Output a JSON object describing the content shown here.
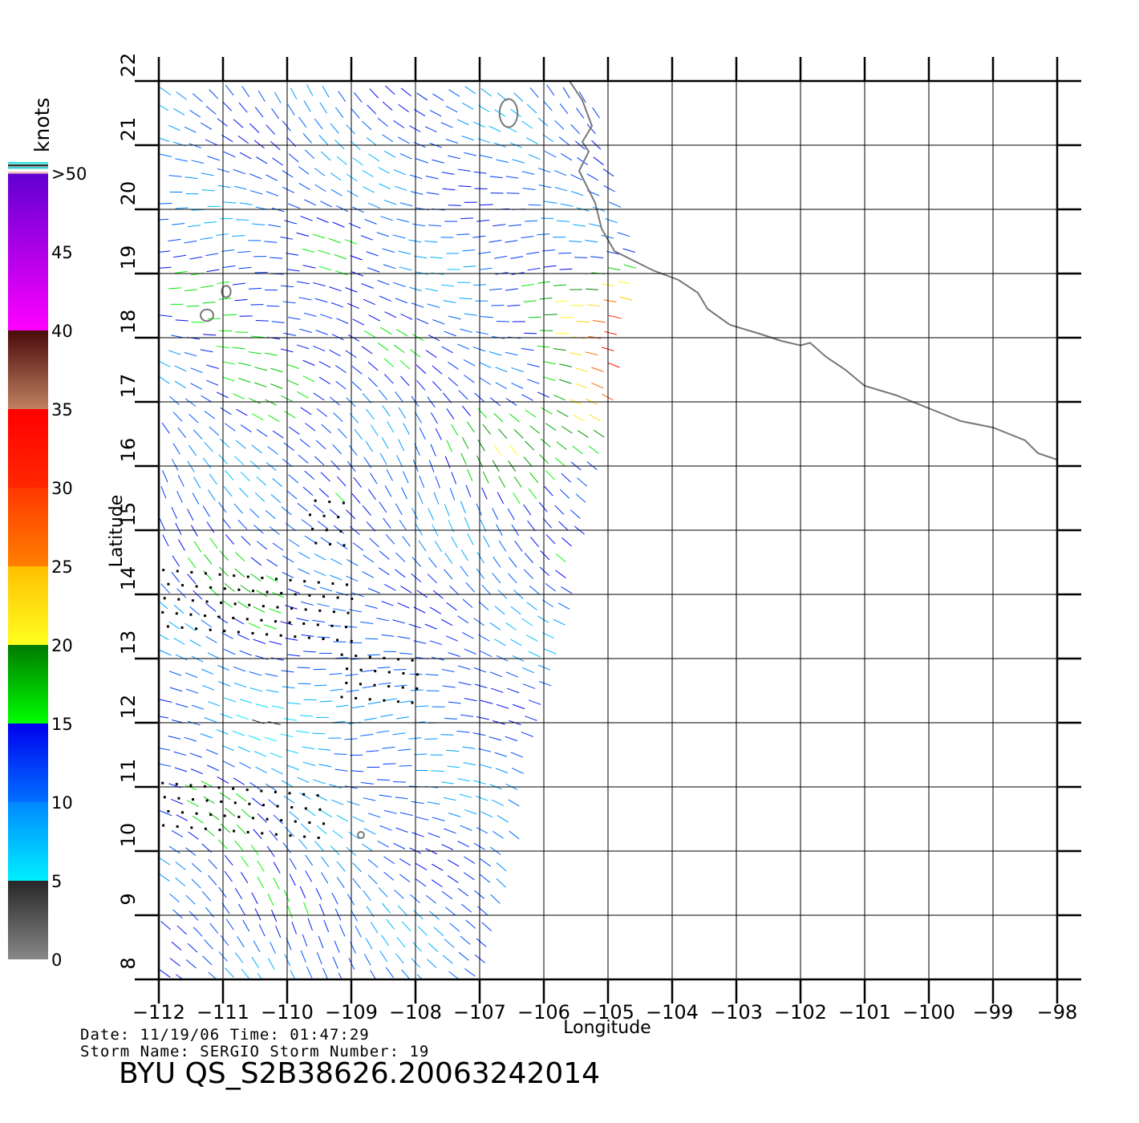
{
  "chart_data": {
    "type": "wind-vector map",
    "xlabel": "Longitude",
    "ylabel": "Latitude",
    "xlim": [
      -112,
      -98
    ],
    "ylim": [
      8,
      22
    ],
    "x_ticks": [
      -112,
      -111,
      -110,
      -109,
      -108,
      -107,
      -106,
      -105,
      -104,
      -103,
      -102,
      -101,
      -100,
      -99,
      -98
    ],
    "y_ticks": [
      8,
      9,
      10,
      11,
      12,
      13,
      14,
      15,
      16,
      17,
      18,
      19,
      20,
      21,
      22
    ],
    "grid": true,
    "colorbar": {
      "unit": "knots",
      "bins": [
        {
          "min": 0,
          "max": 5,
          "colors": [
            "#888888",
            "#262626"
          ]
        },
        {
          "min": 5,
          "max": 10,
          "colors": [
            "#00f0ff",
            "#0088ff"
          ]
        },
        {
          "min": 10,
          "max": 15,
          "colors": [
            "#0070ff",
            "#0000ee"
          ]
        },
        {
          "min": 15,
          "max": 20,
          "colors": [
            "#00ff00",
            "#007a00"
          ]
        },
        {
          "min": 20,
          "max": 25,
          "colors": [
            "#ffff20",
            "#ffc000"
          ]
        },
        {
          "min": 25,
          "max": 30,
          "colors": [
            "#ff8000",
            "#ff3800"
          ]
        },
        {
          "min": 30,
          "max": 35,
          "colors": [
            "#ff2800",
            "#ff0000"
          ]
        },
        {
          "min": 35,
          "max": 40,
          "colors": [
            "#c08060",
            "#4a0a0a"
          ]
        },
        {
          "min": 40,
          "max": 50,
          "colors": [
            "#ff00ff",
            "#6000d0"
          ]
        }
      ],
      "tick_labels": [
        "0",
        "5",
        "10",
        "15",
        "20",
        "25",
        "30",
        "35",
        "40",
        "45",
        ">50"
      ],
      "tick_values": [
        0,
        5,
        10,
        15,
        20,
        25,
        30,
        35,
        40,
        45,
        50
      ]
    },
    "coastline_lonlat": [
      [
        -105.6,
        22.0
      ],
      [
        -105.4,
        21.7
      ],
      [
        -105.25,
        21.3
      ],
      [
        -105.4,
        21.05
      ],
      [
        -105.3,
        20.9
      ],
      [
        -105.45,
        20.6
      ],
      [
        -105.35,
        20.4
      ],
      [
        -105.2,
        20.1
      ],
      [
        -105.1,
        19.7
      ],
      [
        -104.9,
        19.35
      ],
      [
        -104.6,
        19.2
      ],
      [
        -104.3,
        19.05
      ],
      [
        -103.9,
        18.9
      ],
      [
        -103.6,
        18.7
      ],
      [
        -103.45,
        18.45
      ],
      [
        -103.1,
        18.2
      ],
      [
        -102.6,
        18.05
      ],
      [
        -102.3,
        17.95
      ],
      [
        -102.0,
        17.88
      ],
      [
        -101.85,
        17.92
      ],
      [
        -101.6,
        17.7
      ],
      [
        -101.3,
        17.5
      ],
      [
        -101.0,
        17.25
      ],
      [
        -100.5,
        17.1
      ],
      [
        -100.0,
        16.9
      ],
      [
        -99.5,
        16.7
      ],
      [
        -99.0,
        16.6
      ],
      [
        -98.5,
        16.4
      ],
      [
        -98.3,
        16.2
      ],
      [
        -98.0,
        16.1
      ]
    ],
    "islands_lonlat": [
      [
        -106.55,
        21.5,
        0.14,
        0.22
      ],
      [
        -110.95,
        18.72,
        0.07,
        0.09
      ],
      [
        -111.25,
        18.35,
        0.1,
        0.09
      ],
      [
        -108.85,
        10.25,
        0.05,
        0.05
      ]
    ],
    "swath_lonlat": [
      [
        -111.95,
        8.0
      ],
      [
        -106.95,
        8.0
      ],
      [
        -104.55,
        19.0
      ],
      [
        -105.3,
        22.0
      ],
      [
        -111.95,
        22.0
      ]
    ],
    "rain_flag_regions_lonlat": [
      [
        -111.9,
        13.5,
        -109.0,
        14.6
      ],
      [
        -109.1,
        12.4,
        -108.0,
        13.2
      ],
      [
        -109.6,
        14.8,
        -109.0,
        15.6
      ],
      [
        -111.9,
        10.4,
        -109.3,
        11.2
      ]
    ]
  },
  "footer": {
    "line1": "Date: 11/19/06   Time: 01:47:29",
    "line2": "Storm Name: SERGIO   Storm Number: 19",
    "title": "BYU QS_S2B38626.20063242014"
  }
}
